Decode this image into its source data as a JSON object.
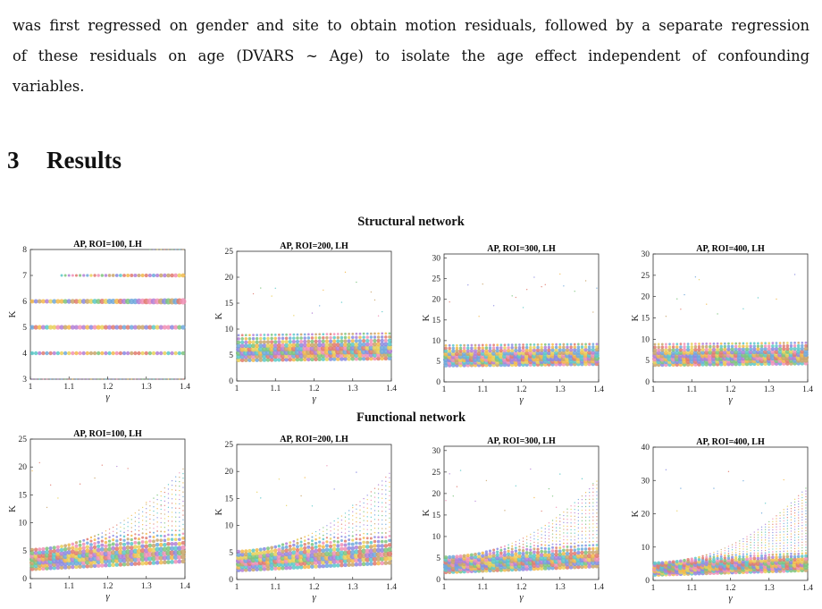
{
  "paragraph": {
    "lines": [
      "was first regressed on gender and site to obtain motion residuals, followed by a separate regression",
      "of these residuals on age (DVARS ∼ Age) to isolate the age effect independent of confounding",
      "variables."
    ]
  },
  "section": {
    "number": "3",
    "title": "Results"
  },
  "figure": {
    "row_titles": [
      "Structural network",
      "Functional network"
    ],
    "palette": [
      "#e07a6f",
      "#6fa8dc",
      "#f2b84b",
      "#7dc47d",
      "#b27fd6",
      "#5bc8c8",
      "#f08fb5",
      "#c9a46b",
      "#8a8ae0",
      "#e8d05a"
    ]
  },
  "chart_data": [
    {
      "type": "scatter",
      "title": "AP, ROI=100, LH",
      "xlabel": "γ",
      "ylabel": "K",
      "xlim": [
        1,
        1.4
      ],
      "ylim": [
        3,
        8
      ],
      "xticks": [
        "1",
        "1.1",
        "1.2",
        "1.3",
        "1.4"
      ],
      "yticks": [
        "3",
        "4",
        "5",
        "6",
        "7",
        "8"
      ],
      "description_values": {
        "K_levels": [
          3,
          4,
          5,
          6,
          7,
          8
        ],
        "dominant_K": [
          4,
          5,
          6
        ]
      }
    },
    {
      "type": "scatter",
      "title": "AP, ROI=200, LH",
      "xlabel": "γ",
      "ylabel": "K",
      "xlim": [
        1,
        1.4
      ],
      "ylim": [
        0,
        25
      ],
      "xticks": [
        "1",
        "1.1",
        "1.2",
        "1.3",
        "1.4"
      ],
      "yticks": [
        "0",
        "5",
        "10",
        "15",
        "20",
        "25"
      ]
    },
    {
      "type": "scatter",
      "title": "AP, ROI=300, LH",
      "xlabel": "γ",
      "ylabel": "K",
      "xlim": [
        1,
        1.4
      ],
      "ylim": [
        0,
        31
      ],
      "xticks": [
        "1",
        "1.1",
        "1.2",
        "1.3",
        "1.4"
      ],
      "yticks": [
        "0",
        "5",
        "10",
        "15",
        "20",
        "25",
        "30"
      ]
    },
    {
      "type": "scatter",
      "title": "AP, ROI=400, LH",
      "xlabel": "γ",
      "ylabel": "K",
      "xlim": [
        1,
        1.4
      ],
      "ylim": [
        0,
        30
      ],
      "xticks": [
        "1",
        "1.1",
        "1.2",
        "1.3",
        "1.4"
      ],
      "yticks": [
        "0",
        "5",
        "10",
        "15",
        "20",
        "25",
        "30"
      ]
    },
    {
      "type": "scatter",
      "title": "AP, ROI=100, LH",
      "xlabel": "γ",
      "ylabel": "K",
      "xlim": [
        1,
        1.4
      ],
      "ylim": [
        0,
        25
      ],
      "xticks": [
        "1",
        "1.1",
        "1.2",
        "1.3",
        "1.4"
      ],
      "yticks": [
        "0",
        "5",
        "10",
        "15",
        "20",
        "25"
      ]
    },
    {
      "type": "scatter",
      "title": "AP, ROI=200, LH",
      "xlabel": "γ",
      "ylabel": "K",
      "xlim": [
        1,
        1.4
      ],
      "ylim": [
        0,
        25
      ],
      "xticks": [
        "1",
        "1.1",
        "1.2",
        "1.3",
        "1.4"
      ],
      "yticks": [
        "0",
        "5",
        "10",
        "15",
        "20",
        "25"
      ]
    },
    {
      "type": "scatter",
      "title": "AP, ROI=300, LH",
      "xlabel": "γ",
      "ylabel": "K",
      "xlim": [
        1,
        1.4
      ],
      "ylim": [
        0,
        31
      ],
      "xticks": [
        "1",
        "1.1",
        "1.2",
        "1.3",
        "1.4"
      ],
      "yticks": [
        "0",
        "5",
        "10",
        "15",
        "20",
        "25",
        "30"
      ]
    },
    {
      "type": "scatter",
      "title": "AP, ROI=400, LH",
      "xlabel": "γ",
      "ylabel": "K",
      "xlim": [
        1,
        1.4
      ],
      "ylim": [
        0,
        40
      ],
      "xticks": [
        "1",
        "1.1",
        "1.2",
        "1.3",
        "1.4"
      ],
      "yticks": [
        "0",
        "10",
        "20",
        "30",
        "40"
      ]
    }
  ]
}
